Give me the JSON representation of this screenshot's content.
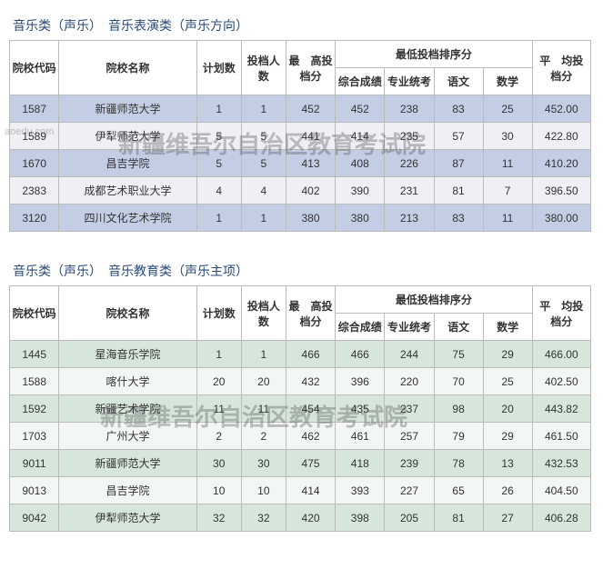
{
  "section1": {
    "title": "音乐类（声乐）　音乐表演类（声乐方向）",
    "headers": {
      "code": "院校代码",
      "name": "院校名称",
      "plan": "计划数",
      "filed": "投档人数",
      "maxscore": "最　高投档分",
      "lowest_group": "最低投档排序分",
      "comp": "综合成绩",
      "major": "专业统考",
      "chinese": "语文",
      "math": "数学",
      "avg": "平　均投档分"
    },
    "rows": [
      {
        "code": "1587",
        "name": "新疆师范大学",
        "plan": "1",
        "filed": "1",
        "max": "452",
        "comp": "452",
        "major": "238",
        "chinese": "83",
        "math": "25",
        "avg": "452.00"
      },
      {
        "code": "1589",
        "name": "伊犁师范大学",
        "plan": "5",
        "filed": "5",
        "max": "441",
        "comp": "414",
        "major": "235",
        "chinese": "57",
        "math": "30",
        "avg": "422.80"
      },
      {
        "code": "1670",
        "name": "昌吉学院",
        "plan": "5",
        "filed": "5",
        "max": "413",
        "comp": "408",
        "major": "226",
        "chinese": "87",
        "math": "11",
        "avg": "410.20"
      },
      {
        "code": "2383",
        "name": "成都艺术职业大学",
        "plan": "4",
        "filed": "4",
        "max": "402",
        "comp": "390",
        "major": "231",
        "chinese": "81",
        "math": "7",
        "avg": "396.50"
      },
      {
        "code": "3120",
        "name": "四川文化艺术学院",
        "plan": "1",
        "filed": "1",
        "max": "380",
        "comp": "380",
        "major": "213",
        "chinese": "83",
        "math": "11",
        "avg": "380.00"
      }
    ],
    "row_odd_class": "row-odd-blue",
    "row_even_class": "row-even-blue"
  },
  "section2": {
    "title": "音乐类（声乐）　音乐教育类（声乐主项）",
    "headers": {
      "code": "院校代码",
      "name": "院校名称",
      "plan": "计划数",
      "filed": "投档人数",
      "maxscore": "最　高投档分",
      "lowest_group": "最低投档排序分",
      "comp": "综合成绩",
      "major": "专业统考",
      "chinese": "语文",
      "math": "数学",
      "avg": "平　均投档分"
    },
    "rows": [
      {
        "code": "1445",
        "name": "星海音乐学院",
        "plan": "1",
        "filed": "1",
        "max": "466",
        "comp": "466",
        "major": "244",
        "chinese": "75",
        "math": "29",
        "avg": "466.00"
      },
      {
        "code": "1588",
        "name": "喀什大学",
        "plan": "20",
        "filed": "20",
        "max": "432",
        "comp": "396",
        "major": "220",
        "chinese": "70",
        "math": "25",
        "avg": "402.50"
      },
      {
        "code": "1592",
        "name": "新疆艺术学院",
        "plan": "11",
        "filed": "11",
        "max": "454",
        "comp": "435",
        "major": "237",
        "chinese": "98",
        "math": "20",
        "avg": "443.82"
      },
      {
        "code": "1703",
        "name": "广州大学",
        "plan": "2",
        "filed": "2",
        "max": "462",
        "comp": "461",
        "major": "257",
        "chinese": "79",
        "math": "29",
        "avg": "461.50"
      },
      {
        "code": "9011",
        "name": "新疆师范大学",
        "plan": "30",
        "filed": "30",
        "max": "475",
        "comp": "418",
        "major": "239",
        "chinese": "78",
        "math": "13",
        "avg": "432.53"
      },
      {
        "code": "9013",
        "name": "昌吉学院",
        "plan": "10",
        "filed": "10",
        "max": "414",
        "comp": "393",
        "major": "227",
        "chinese": "65",
        "math": "26",
        "avg": "404.50"
      },
      {
        "code": "9042",
        "name": "伊犁师范大学",
        "plan": "32",
        "filed": "32",
        "max": "420",
        "comp": "398",
        "major": "205",
        "chinese": "81",
        "math": "27",
        "avg": "406.28"
      }
    ],
    "row_odd_class": "row-odd-green",
    "row_even_class": "row-even-green"
  },
  "watermark_text": "新疆维吾尔自治区教育考试院",
  "small_watermark": "aoedu.com",
  "col_widths": {
    "code": 50,
    "name": 150,
    "plan": 45,
    "filed": 45,
    "max": 50,
    "comp": 50,
    "major": 50,
    "chinese": 50,
    "math": 50,
    "avg": 60
  }
}
